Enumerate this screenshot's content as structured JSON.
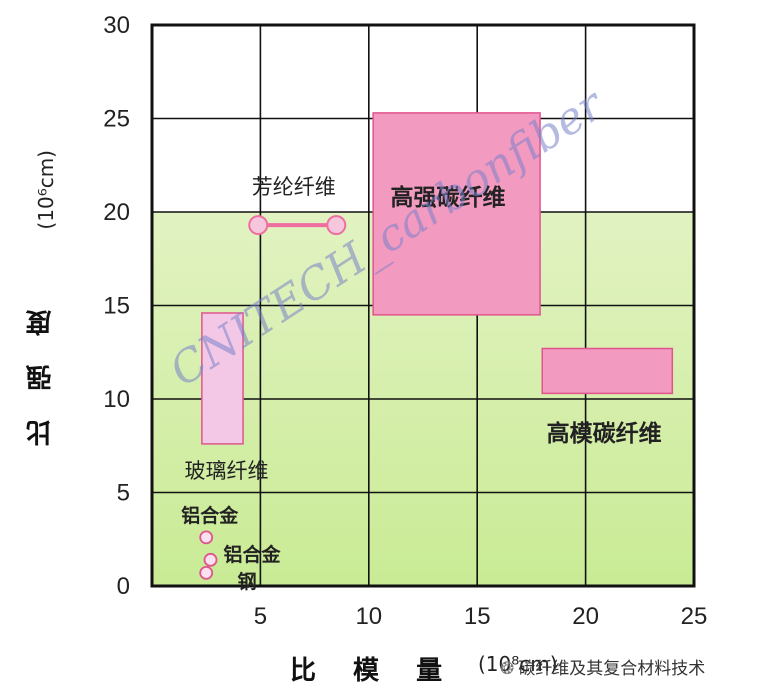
{
  "chart_data": {
    "type": "scatter",
    "title": "",
    "xlabel": "比 模 量",
    "xunit": "(10⁸cm)",
    "ylabel": "比 强 度",
    "yunit": "(10⁶cm)",
    "xlim": [
      0,
      25
    ],
    "ylim": [
      0,
      30
    ],
    "xticks": [
      5,
      10,
      15,
      20,
      25
    ],
    "yticks": [
      0,
      5,
      10,
      15,
      20,
      25,
      30
    ],
    "grid": true,
    "background": {
      "white_above_y": 20,
      "top_color": "#eef6d8",
      "bottom_color": "#c9eb95"
    },
    "regions": [
      {
        "name": "高强碳纤维",
        "x": [
          10.2,
          17.9
        ],
        "y": [
          14.5,
          25.3
        ],
        "color": "#f29ac0"
      },
      {
        "name": "高模碳纤维",
        "x": [
          18.0,
          24.0
        ],
        "y": [
          10.3,
          12.7
        ],
        "color": "#f29ac0"
      },
      {
        "name": "玻璃纤维",
        "x": [
          2.3,
          4.2
        ],
        "y": [
          7.6,
          14.6
        ],
        "color": "#f3c8e6"
      }
    ],
    "segments": [
      {
        "name": "芳纶纤维",
        "x": [
          4.9,
          8.5
        ],
        "y": [
          19.3,
          19.3
        ],
        "color": "#ee6ea0"
      }
    ],
    "points": [
      {
        "name": "铝合金",
        "x": 2.5,
        "y": 2.6
      },
      {
        "name": "铝合金",
        "x": 2.7,
        "y": 1.4
      },
      {
        "name": "钢",
        "x": 2.5,
        "y": 0.7
      }
    ],
    "annotations": [
      {
        "text": "芳纶纤维",
        "bold": false
      },
      {
        "text": "高强碳纤维",
        "bold": true
      },
      {
        "text": "高模碳纤维",
        "bold": true
      },
      {
        "text": "玻璃纤维",
        "bold": false
      },
      {
        "text": "铝合金",
        "bold": true
      },
      {
        "text": "铝合金",
        "bold": true
      },
      {
        "text": "钢",
        "bold": true
      }
    ]
  },
  "watermark": "CNITECH_carbonfiber",
  "credit": {
    "icon": "wechat-icon",
    "text": "碳纤维及其复合材料技术"
  }
}
